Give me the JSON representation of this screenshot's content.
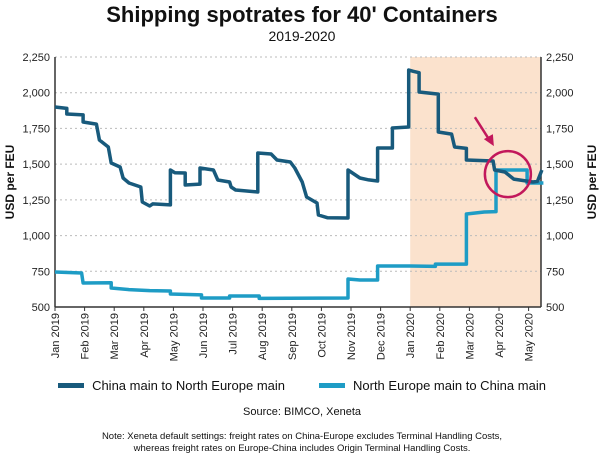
{
  "chart_data": {
    "type": "line",
    "title": "Shipping spotrates for 40' Containers",
    "subtitle": "2019-2020",
    "ylabel": "USD per FEU",
    "ylabel_right": "USD per FEU",
    "ylim": [
      500,
      2250
    ],
    "yticks": [
      500,
      750,
      1000,
      1250,
      1500,
      1750,
      2000,
      2250
    ],
    "ytick_labels": [
      "500",
      "750",
      "1,000",
      "1,250",
      "1,500",
      "1,750",
      "2,000",
      "2,250"
    ],
    "x_unit": "months since Jan 2019",
    "xlim": [
      0,
      16.5
    ],
    "xtick_labels": [
      "Jan 2019",
      "Feb 2019",
      "Mar 2019",
      "Apr 2019",
      "May 2019",
      "Jun 2019",
      "Jul 2019",
      "Aug 2019",
      "Sep 2019",
      "Oct 2019",
      "Nov 2019",
      "Dec 2019",
      "Jan 2020",
      "Feb 2020",
      "Mar 2020",
      "Apr 2020",
      "May 2020"
    ],
    "grid": "horizontal dotted",
    "shaded_region": {
      "from": 12,
      "to": 16.5,
      "color": "#fbe2cd"
    },
    "annotation": {
      "type": "circle-with-arrow",
      "center": [
        15.3,
        1430
      ],
      "color": "#c2185b"
    },
    "series": [
      {
        "name": "China main to North Europe main",
        "color": "#185a7c",
        "points": [
          [
            0,
            1900
          ],
          [
            0.4,
            1890
          ],
          [
            0.4,
            1851
          ],
          [
            0.95,
            1845
          ],
          [
            0.95,
            1795
          ],
          [
            1.4,
            1780
          ],
          [
            1.5,
            1669
          ],
          [
            1.8,
            1620
          ],
          [
            1.9,
            1508
          ],
          [
            2.2,
            1480
          ],
          [
            2.3,
            1403
          ],
          [
            2.5,
            1368
          ],
          [
            2.9,
            1340
          ],
          [
            2.95,
            1235
          ],
          [
            3.2,
            1207
          ],
          [
            3.3,
            1222
          ],
          [
            3.9,
            1215
          ],
          [
            3.9,
            1459
          ],
          [
            4.05,
            1440
          ],
          [
            4.4,
            1438
          ],
          [
            4.4,
            1354
          ],
          [
            4.9,
            1360
          ],
          [
            4.9,
            1473
          ],
          [
            5.35,
            1459
          ],
          [
            5.5,
            1389
          ],
          [
            5.9,
            1375
          ],
          [
            5.95,
            1340
          ],
          [
            6.1,
            1319
          ],
          [
            6.85,
            1305
          ],
          [
            6.85,
            1578
          ],
          [
            7.3,
            1571
          ],
          [
            7.5,
            1529
          ],
          [
            7.95,
            1515
          ],
          [
            8.1,
            1473
          ],
          [
            8.35,
            1375
          ],
          [
            8.5,
            1270
          ],
          [
            8.85,
            1228
          ],
          [
            8.9,
            1144
          ],
          [
            9.2,
            1125
          ],
          [
            9.9,
            1123
          ],
          [
            9.9,
            1459
          ],
          [
            10.3,
            1403
          ],
          [
            10.6,
            1390
          ],
          [
            10.9,
            1382
          ],
          [
            10.9,
            1613
          ],
          [
            11.4,
            1613
          ],
          [
            11.4,
            1753
          ],
          [
            11.95,
            1760
          ],
          [
            11.95,
            2159
          ],
          [
            12.1,
            2150
          ],
          [
            12.3,
            2140
          ],
          [
            12.3,
            2005
          ],
          [
            12.95,
            1990
          ],
          [
            12.95,
            1725
          ],
          [
            13.4,
            1710
          ],
          [
            13.5,
            1620
          ],
          [
            13.9,
            1610
          ],
          [
            13.9,
            1529
          ],
          [
            14.8,
            1522
          ],
          [
            14.85,
            1459
          ],
          [
            15.2,
            1445
          ],
          [
            15.5,
            1395
          ],
          [
            16.15,
            1375
          ],
          [
            16.3,
            1380
          ],
          [
            16.45,
            1459
          ]
        ]
      },
      {
        "name": "North Europe main to China main",
        "color": "#1e9cc5",
        "points": [
          [
            0,
            745
          ],
          [
            0.9,
            738
          ],
          [
            0.95,
            668
          ],
          [
            1.9,
            670
          ],
          [
            1.9,
            633
          ],
          [
            2.5,
            622
          ],
          [
            3.2,
            615
          ],
          [
            3.9,
            612
          ],
          [
            3.9,
            591
          ],
          [
            4.95,
            585
          ],
          [
            4.95,
            563
          ],
          [
            5.9,
            563
          ],
          [
            5.9,
            577
          ],
          [
            6.9,
            577
          ],
          [
            6.9,
            560
          ],
          [
            9.9,
            563
          ],
          [
            9.9,
            696
          ],
          [
            10.3,
            689
          ],
          [
            10.9,
            689
          ],
          [
            10.9,
            787
          ],
          [
            12.0,
            787
          ],
          [
            12.85,
            784
          ],
          [
            12.85,
            800
          ],
          [
            13.9,
            800
          ],
          [
            13.9,
            1151
          ],
          [
            14.5,
            1165
          ],
          [
            14.9,
            1168
          ],
          [
            14.9,
            1459
          ],
          [
            15.95,
            1459
          ],
          [
            15.95,
            1368
          ],
          [
            16.5,
            1368
          ]
        ]
      }
    ]
  },
  "legend": {
    "items": [
      "China main to North Europe main",
      "North Europe main to China main"
    ]
  },
  "source": "Source: BIMCO, Xeneta",
  "note": {
    "line1": "Note: Xeneta default settings: freight rates on China-Europe excludes Terminal Handling Costs,",
    "line2": "whereas freight rates on Europe-China includes Origin Terminal Handling Costs."
  }
}
